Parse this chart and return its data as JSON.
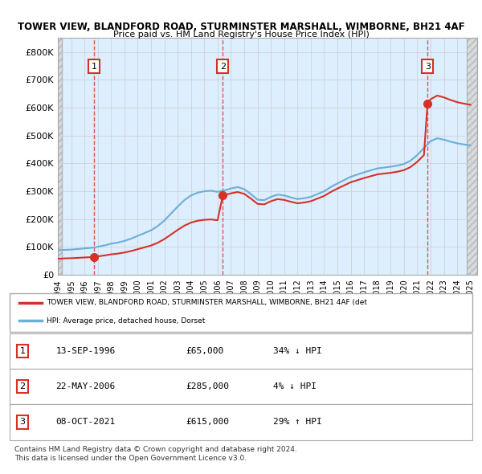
{
  "title1": "TOWER VIEW, BLANDFORD ROAD, STURMINSTER MARSHALL, WIMBORNE, BH21 4AF",
  "title2": "Price paid vs. HM Land Registry's House Price Index (HPI)",
  "xlim": [
    1994.0,
    2025.5
  ],
  "ylim": [
    0,
    850000
  ],
  "yticks": [
    0,
    100000,
    200000,
    300000,
    400000,
    500000,
    600000,
    700000,
    800000
  ],
  "ytick_labels": [
    "£0",
    "£100K",
    "£200K",
    "£300K",
    "£400K",
    "£500K",
    "£600K",
    "£700K",
    "£800K"
  ],
  "xticks": [
    1994,
    1995,
    1996,
    1997,
    1998,
    1999,
    2000,
    2001,
    2002,
    2003,
    2004,
    2005,
    2006,
    2007,
    2008,
    2009,
    2010,
    2011,
    2012,
    2013,
    2014,
    2015,
    2016,
    2017,
    2018,
    2019,
    2020,
    2021,
    2022,
    2023,
    2024,
    2025
  ],
  "sale_dates": [
    1996.71,
    2006.39,
    2021.77
  ],
  "sale_prices": [
    65000,
    285000,
    615000
  ],
  "sale_labels": [
    "1",
    "2",
    "3"
  ],
  "hpi_color": "#6baed6",
  "sale_color": "#d73027",
  "legend_sale_label": "TOWER VIEW, BLANDFORD ROAD, STURMINSTER MARSHALL, WIMBORNE, BH21 4AF (det",
  "legend_hpi_label": "HPI: Average price, detached house, Dorset",
  "table_rows": [
    [
      "1",
      "13-SEP-1996",
      "£65,000",
      "34% ↓ HPI"
    ],
    [
      "2",
      "22-MAY-2006",
      "£285,000",
      "4% ↓ HPI"
    ],
    [
      "3",
      "08-OCT-2021",
      "£615,000",
      "29% ↑ HPI"
    ]
  ],
  "footnote1": "Contains HM Land Registry data © Crown copyright and database right 2024.",
  "footnote2": "This data is licensed under the Open Government Licence v3.0.",
  "grid_color": "#cccccc",
  "bg_plot": "#ddeeff",
  "bg_hatch": "#e8e8e8"
}
